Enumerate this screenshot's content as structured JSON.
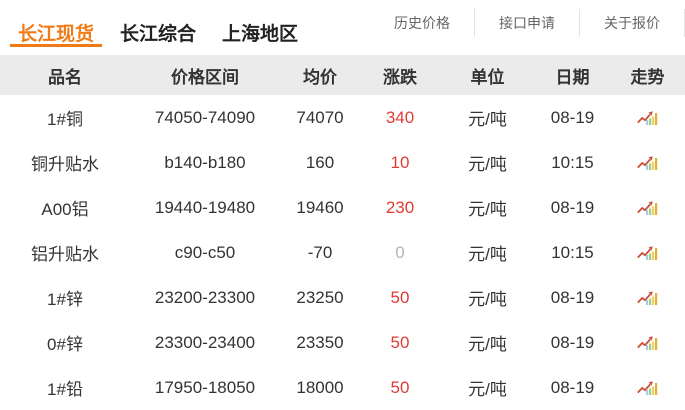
{
  "tabs": [
    {
      "label": "长江现货",
      "active": true
    },
    {
      "label": "长江综合",
      "active": false
    },
    {
      "label": "上海地区",
      "active": false
    }
  ],
  "menu": [
    {
      "label": "历史价格"
    },
    {
      "label": "接口申请"
    },
    {
      "label": "关于报价"
    }
  ],
  "table": {
    "headers": [
      "品名",
      "价格区间",
      "均价",
      "涨跌",
      "单位",
      "日期",
      "走势"
    ],
    "rows": [
      {
        "name": "1#铜",
        "range": "74050-74090",
        "avg": "74070",
        "change": "340",
        "trend": "up",
        "unit": "元/吨",
        "date": "08-19"
      },
      {
        "name": "铜升贴水",
        "range": "b140-b180",
        "avg": "160",
        "change": "10",
        "trend": "up",
        "unit": "元/吨",
        "date": "10:15"
      },
      {
        "name": "A00铝",
        "range": "19440-19480",
        "avg": "19460",
        "change": "230",
        "trend": "up",
        "unit": "元/吨",
        "date": "08-19"
      },
      {
        "name": "铝升贴水",
        "range": "c90-c50",
        "avg": "-70",
        "change": "0",
        "trend": "flat",
        "unit": "元/吨",
        "date": "10:15"
      },
      {
        "name": "1#锌",
        "range": "23200-23300",
        "avg": "23250",
        "change": "50",
        "trend": "up",
        "unit": "元/吨",
        "date": "08-19"
      },
      {
        "name": "0#锌",
        "range": "23300-23400",
        "avg": "23350",
        "change": "50",
        "trend": "up",
        "unit": "元/吨",
        "date": "08-19"
      },
      {
        "name": "1#铅",
        "range": "17950-18050",
        "avg": "18000",
        "change": "50",
        "trend": "up",
        "unit": "元/吨",
        "date": "08-19"
      }
    ]
  },
  "colors": {
    "accent_orange": "#f07b16",
    "change_up_red": "#e03c34",
    "change_flat_gray": "#b5b5b5",
    "header_row_bg": "#ebebeb",
    "body_text": "#333333",
    "menu_text": "#666666",
    "trend_arrow": "#c94f38",
    "trend_bar_blue": "#a8c8ee",
    "trend_bar_green": "#9ed07e",
    "trend_bar_yellow": "#f2cf63",
    "trend_bar_gold": "#e2b13c"
  },
  "icons": {
    "trend": "trend-chart-icon"
  }
}
